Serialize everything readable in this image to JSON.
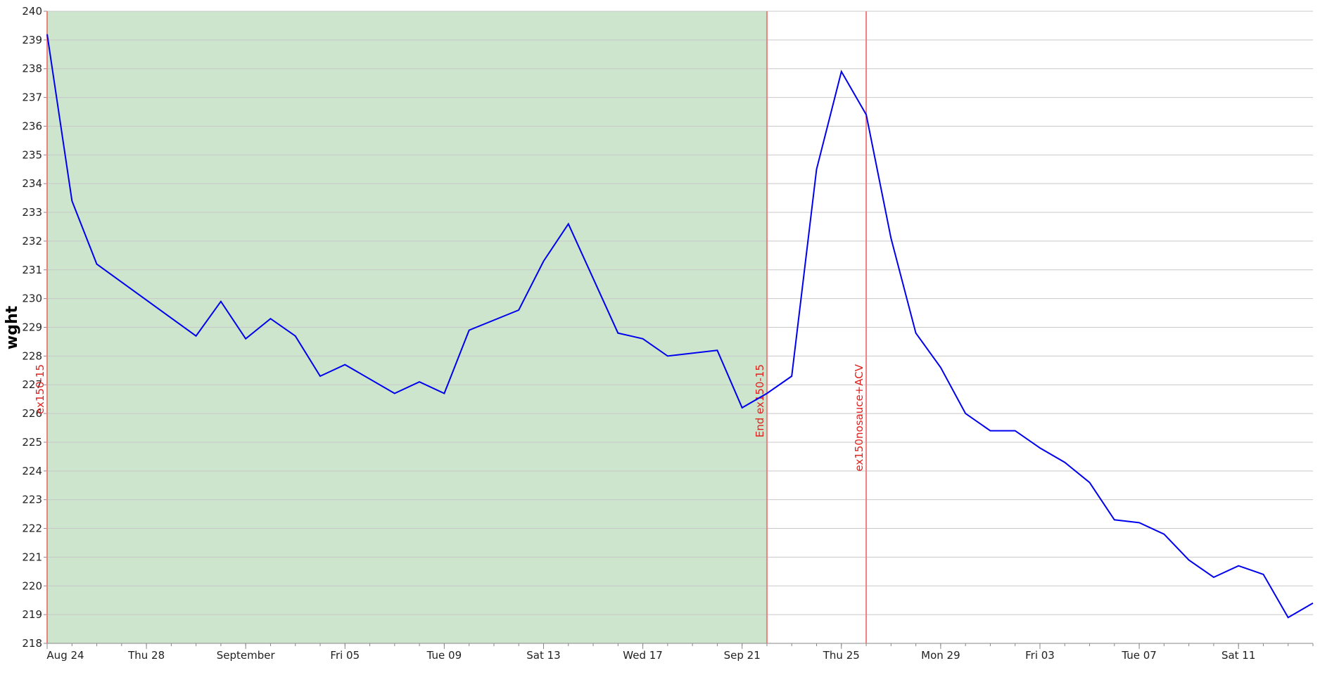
{
  "chart_data": {
    "type": "line",
    "y_label": "wght",
    "x": [
      "08-24",
      "08-25",
      "08-26",
      "08-30",
      "08-31",
      "09-01",
      "09-02",
      "09-03",
      "09-04",
      "09-05",
      "09-07",
      "09-08",
      "09-09",
      "09-10",
      "09-12",
      "09-13",
      "09-14",
      "09-16",
      "09-17",
      "09-18",
      "09-20",
      "09-21",
      "09-22",
      "09-23",
      "09-24",
      "09-25",
      "09-26",
      "09-27",
      "09-28",
      "09-29",
      "09-30",
      "10-01",
      "10-02",
      "10-03",
      "10-04",
      "10-05",
      "10-06",
      "10-07",
      "10-08",
      "10-09",
      "10-10",
      "10-11",
      "10-12",
      "10-13",
      "10-14"
    ],
    "series": [
      {
        "name": "wght",
        "color": "#0000ee",
        "values": [
          239.2,
          233.4,
          231.2,
          228.7,
          229.9,
          228.6,
          229.3,
          228.7,
          227.3,
          227.7,
          226.7,
          227.1,
          226.7,
          228.9,
          229.6,
          231.3,
          232.6,
          228.8,
          228.6,
          228.0,
          228.2,
          226.2,
          226.7,
          227.3,
          234.5,
          237.9,
          236.4,
          232.1,
          228.8,
          227.6,
          226.0,
          225.4,
          225.4,
          224.8,
          224.3,
          223.6,
          222.3,
          222.2,
          221.8,
          220.9,
          220.3,
          220.7,
          220.4,
          218.9,
          219.4
        ]
      }
    ],
    "xlim": [
      "08-24",
      "10-14"
    ],
    "xticks": [
      {
        "value": "08-24",
        "label": "Aug 24"
      },
      {
        "value": "08-28",
        "label": "Thu 28"
      },
      {
        "value": "09-01",
        "label": "September"
      },
      {
        "value": "09-05",
        "label": "Fri 05"
      },
      {
        "value": "09-09",
        "label": "Tue 09"
      },
      {
        "value": "09-13",
        "label": "Sat 13"
      },
      {
        "value": "09-17",
        "label": "Wed 17"
      },
      {
        "value": "09-21",
        "label": "Sep 21"
      },
      {
        "value": "09-25",
        "label": "Thu 25"
      },
      {
        "value": "09-29",
        "label": "Mon 29"
      },
      {
        "value": "10-03",
        "label": "Fri 03"
      },
      {
        "value": "10-07",
        "label": "Tue 07"
      },
      {
        "value": "10-11",
        "label": "Sat 11"
      }
    ],
    "ylim": [
      218,
      240
    ],
    "yticks": [
      218,
      219,
      220,
      221,
      222,
      223,
      224,
      225,
      226,
      227,
      228,
      229,
      230,
      231,
      232,
      233,
      234,
      235,
      236,
      237,
      238,
      239,
      240
    ],
    "grid": true,
    "shaded_region": {
      "x": [
        "08-24",
        "09-22"
      ],
      "color": "#cce5cc"
    },
    "annotations": [
      {
        "x": "08-24",
        "label": "ex150-15"
      },
      {
        "x": "09-22",
        "label": "End ex150-15"
      },
      {
        "x": "09-26",
        "label": "ex150nosauce+ACV"
      }
    ],
    "annotation_color": "#f08080"
  }
}
